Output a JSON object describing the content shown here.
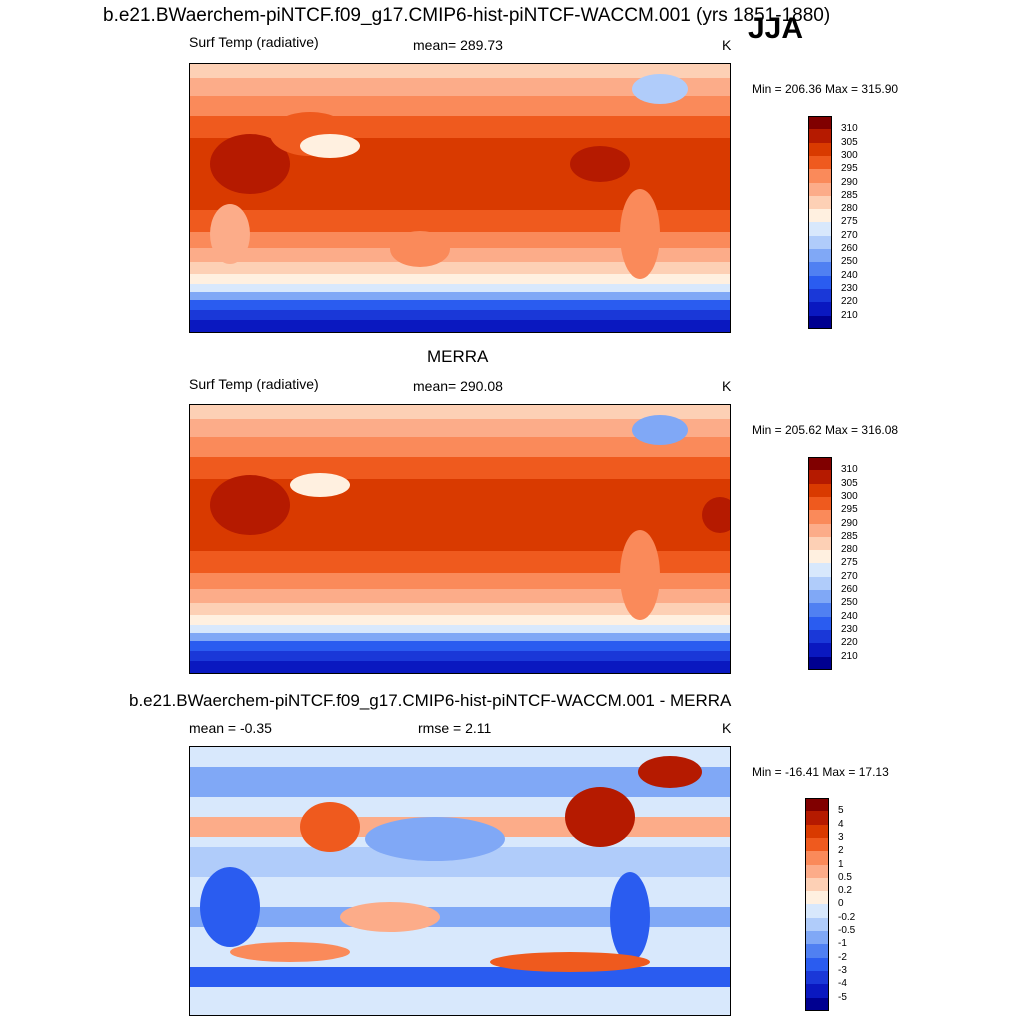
{
  "season": "JJA",
  "panels": [
    {
      "title": "b.e21.BWaerchem-piNTCF.f09_g17.CMIP6-hist-piNTCF-WACCM.001 (yrs 1851-1880)",
      "left_label": "Surf Temp (radiative)",
      "center_label": "mean= 289.73",
      "units": "K",
      "minmax": "Min = 206.36 Max = 315.90",
      "colorbar": {
        "labels": [
          "310",
          "305",
          "300",
          "295",
          "290",
          "285",
          "280",
          "275",
          "270",
          "260",
          "250",
          "240",
          "230",
          "220",
          "210"
        ],
        "colors": [
          "#800000",
          "#b51a00",
          "#d93a00",
          "#ef5a1e",
          "#fa8a5a",
          "#fcac89",
          "#fdd0b5",
          "#fff0e0",
          "#d8e8fc",
          "#b0ccfa",
          "#80a8f6",
          "#5080f2",
          "#2a5cf0",
          "#1a38d8",
          "#0a18c0",
          "#000090"
        ]
      }
    },
    {
      "title": "MERRA",
      "left_label": "Surf Temp (radiative)",
      "center_label": "mean= 290.08",
      "units": "K",
      "minmax": "Min = 205.62 Max = 316.08",
      "colorbar": {
        "labels": [
          "310",
          "305",
          "300",
          "295",
          "290",
          "285",
          "280",
          "275",
          "270",
          "260",
          "250",
          "240",
          "230",
          "220",
          "210"
        ],
        "colors": [
          "#800000",
          "#b51a00",
          "#d93a00",
          "#ef5a1e",
          "#fa8a5a",
          "#fcac89",
          "#fdd0b5",
          "#fff0e0",
          "#d8e8fc",
          "#b0ccfa",
          "#80a8f6",
          "#5080f2",
          "#2a5cf0",
          "#1a38d8",
          "#0a18c0",
          "#000090"
        ]
      }
    },
    {
      "title": "b.e21.BWaerchem-piNTCF.f09_g17.CMIP6-hist-piNTCF-WACCM.001 - MERRA",
      "left_label": "mean =  -0.35",
      "center_label": "rmse =   2.11",
      "units": "K",
      "minmax": "Min = -16.41 Max =  17.13",
      "colorbar": {
        "labels": [
          "5",
          "4",
          "3",
          "2",
          "1",
          "0.5",
          "0.2",
          "0",
          "-0.2",
          "-0.5",
          "-1",
          "-2",
          "-3",
          "-4",
          "-5"
        ],
        "colors": [
          "#800000",
          "#b51a00",
          "#d93a00",
          "#ef5a1e",
          "#fa8a5a",
          "#fcac89",
          "#fdd0b5",
          "#fff0e0",
          "#d8e8fc",
          "#b0ccfa",
          "#80a8f6",
          "#5080f2",
          "#2a5cf0",
          "#1a38d8",
          "#0a18c0",
          "#000090"
        ]
      }
    }
  ],
  "chart_data": [
    {
      "type": "heatmap",
      "title": "b.e21.BWaerchem-piNTCF.f09_g17.CMIP6-hist-piNTCF-WACCM.001 (yrs 1851-1880)",
      "variable": "Surf Temp (radiative)",
      "units": "K",
      "season": "JJA",
      "mean": 289.73,
      "min": 206.36,
      "max": 315.9,
      "levels": [
        210,
        220,
        230,
        240,
        250,
        260,
        270,
        275,
        280,
        285,
        290,
        295,
        300,
        305,
        310
      ]
    },
    {
      "type": "heatmap",
      "title": "MERRA",
      "variable": "Surf Temp (radiative)",
      "units": "K",
      "mean": 290.08,
      "min": 205.62,
      "max": 316.08,
      "levels": [
        210,
        220,
        230,
        240,
        250,
        260,
        270,
        275,
        280,
        285,
        290,
        295,
        300,
        305,
        310
      ]
    },
    {
      "type": "heatmap",
      "title": "b.e21.BWaerchem-piNTCF.f09_g17.CMIP6-hist-piNTCF-WACCM.001 - MERRA",
      "units": "K",
      "mean": -0.35,
      "rmse": 2.11,
      "min": -16.41,
      "max": 17.13,
      "levels": [
        -5,
        -4,
        -3,
        -2,
        -1,
        -0.5,
        -0.2,
        0,
        0.2,
        0.5,
        1,
        2,
        3,
        4,
        5
      ]
    }
  ]
}
